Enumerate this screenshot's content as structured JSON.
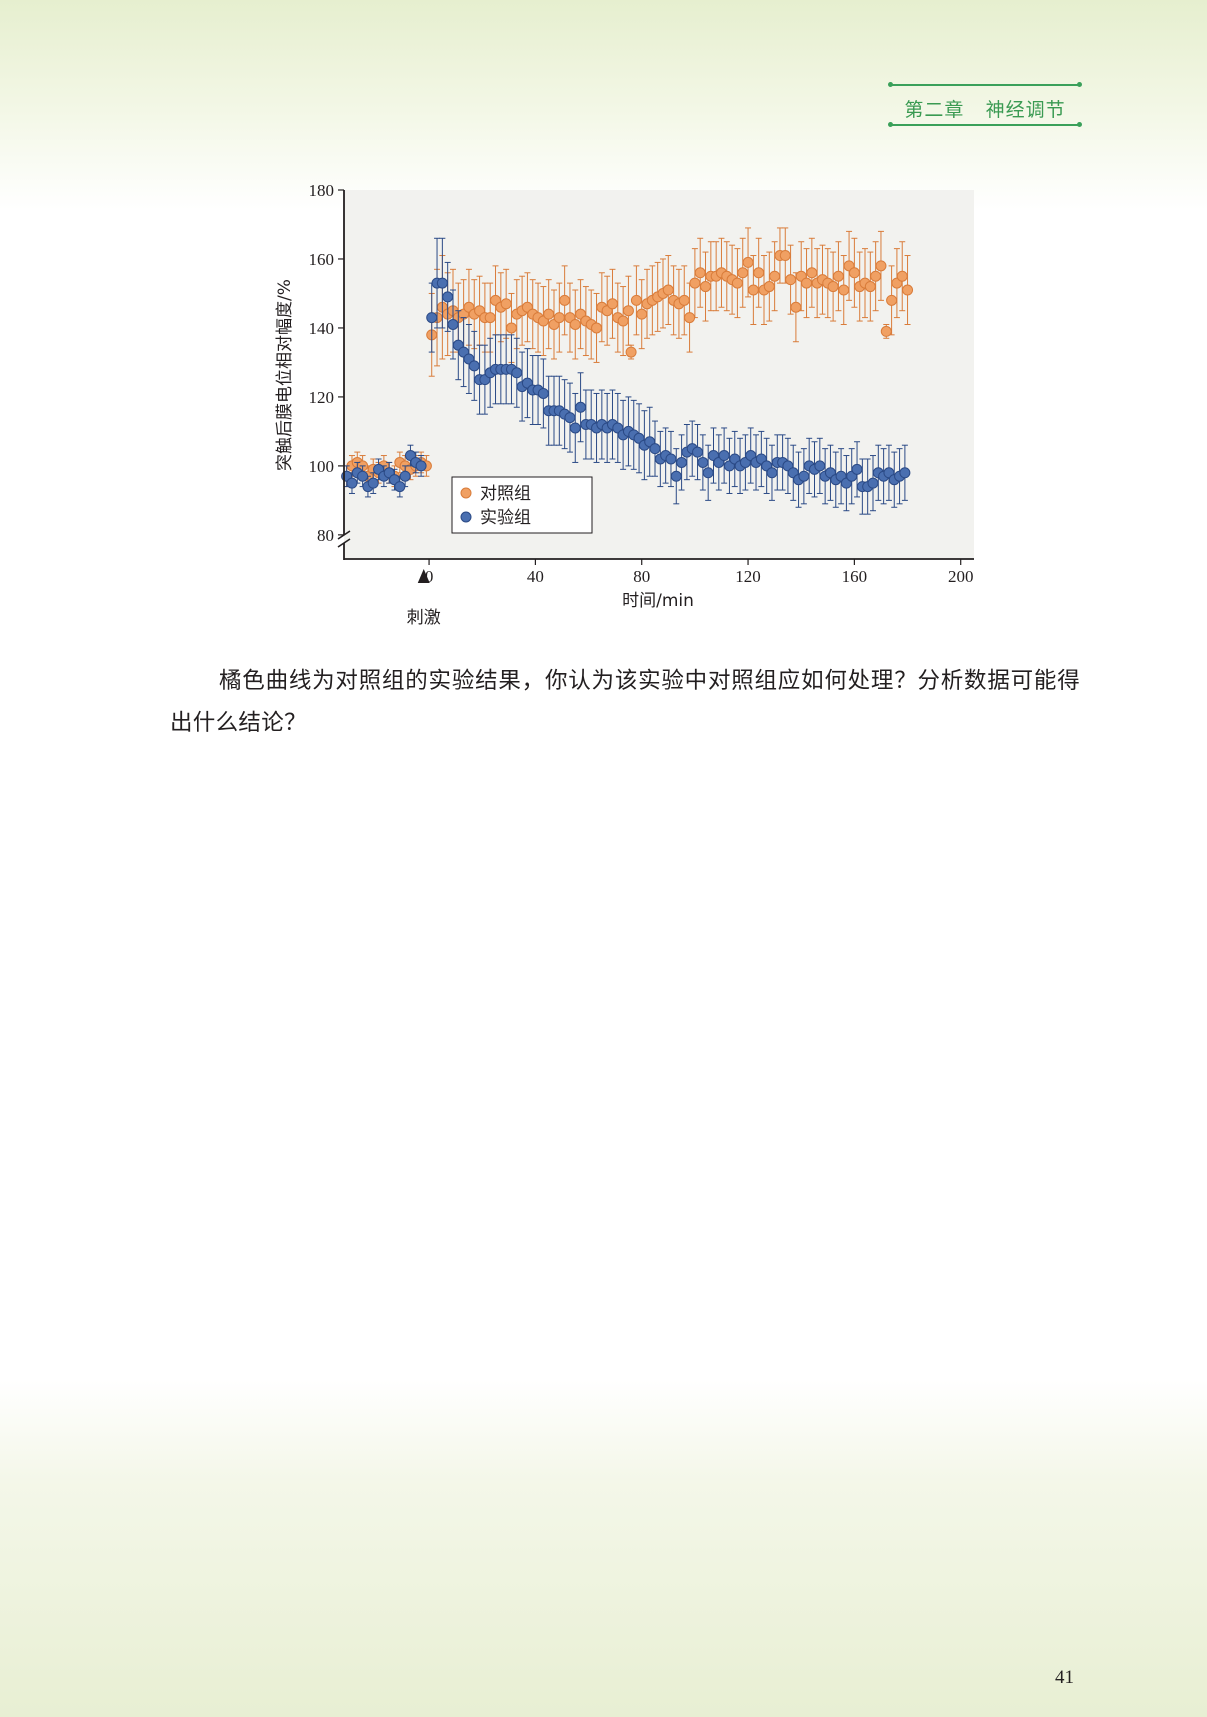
{
  "header": {
    "chapter": "第二章",
    "section": "神经调节"
  },
  "chart_data": {
    "type": "scatter",
    "xlabel": "时间/min",
    "ylabel": "突触后膜电位相对幅度/%",
    "xlim": [
      -32,
      205
    ],
    "ylim": [
      73,
      180
    ],
    "xticks": [
      "0",
      "40",
      "80",
      "120",
      "160",
      "200"
    ],
    "yticks": [
      "80",
      "100",
      "120",
      "140",
      "160",
      "180"
    ],
    "y_axis_break": true,
    "stimulus_label": "刺激",
    "stimulus_x": -2,
    "error_bars": true,
    "grid": false,
    "legend_position": "lower-left",
    "background_color": "#f2f2ef",
    "series": [
      {
        "name": "对照组",
        "color": "#f0a063",
        "edge_color": "#d97c3a",
        "points": [
          [
            -31,
            97,
            3
          ],
          [
            -29,
            100,
            3
          ],
          [
            -27,
            101,
            3
          ],
          [
            -25,
            100,
            3
          ],
          [
            -23,
            97,
            3
          ],
          [
            -21,
            99,
            3
          ],
          [
            -19,
            98,
            3
          ],
          [
            -17,
            100,
            3
          ],
          [
            -15,
            98,
            3
          ],
          [
            -13,
            97,
            3
          ],
          [
            -11,
            101,
            3
          ],
          [
            -9,
            100,
            3
          ],
          [
            -7,
            99,
            3
          ],
          [
            -5,
            100,
            3
          ],
          [
            -3,
            101,
            3
          ],
          [
            -1,
            100,
            3
          ],
          [
            1,
            138,
            12
          ],
          [
            3,
            143,
            14
          ],
          [
            5,
            146,
            15
          ],
          [
            7,
            144,
            12
          ],
          [
            9,
            145,
            12
          ],
          [
            11,
            143,
            10
          ],
          [
            13,
            144,
            10
          ],
          [
            15,
            146,
            11
          ],
          [
            17,
            144,
            10
          ],
          [
            19,
            145,
            10
          ],
          [
            21,
            143,
            10
          ],
          [
            23,
            143,
            10
          ],
          [
            25,
            148,
            10
          ],
          [
            27,
            146,
            10
          ],
          [
            29,
            147,
            10
          ],
          [
            31,
            140,
            10
          ],
          [
            33,
            144,
            10
          ],
          [
            35,
            145,
            10
          ],
          [
            37,
            146,
            10
          ],
          [
            39,
            144,
            10
          ],
          [
            41,
            143,
            10
          ],
          [
            43,
            142,
            10
          ],
          [
            45,
            144,
            10
          ],
          [
            47,
            141,
            10
          ],
          [
            49,
            143,
            10
          ],
          [
            51,
            148,
            10
          ],
          [
            53,
            143,
            10
          ],
          [
            55,
            141,
            10
          ],
          [
            57,
            144,
            10
          ],
          [
            59,
            142,
            10
          ],
          [
            61,
            141,
            10
          ],
          [
            63,
            140,
            10
          ],
          [
            65,
            146,
            10
          ],
          [
            67,
            145,
            10
          ],
          [
            69,
            147,
            10
          ],
          [
            71,
            143,
            10
          ],
          [
            73,
            142,
            10
          ],
          [
            75,
            145,
            10
          ],
          [
            76,
            133,
            2
          ],
          [
            78,
            148,
            10
          ],
          [
            80,
            144,
            10
          ],
          [
            82,
            147,
            10
          ],
          [
            84,
            148,
            10
          ],
          [
            86,
            149,
            10
          ],
          [
            88,
            150,
            10
          ],
          [
            90,
            151,
            10
          ],
          [
            92,
            148,
            10
          ],
          [
            94,
            147,
            10
          ],
          [
            96,
            148,
            10
          ],
          [
            98,
            143,
            10
          ],
          [
            100,
            153,
            10
          ],
          [
            102,
            156,
            10
          ],
          [
            104,
            152,
            10
          ],
          [
            106,
            155,
            10
          ],
          [
            108,
            155,
            10
          ],
          [
            110,
            156,
            10
          ],
          [
            112,
            155,
            10
          ],
          [
            114,
            154,
            10
          ],
          [
            116,
            153,
            10
          ],
          [
            118,
            156,
            10
          ],
          [
            120,
            159,
            10
          ],
          [
            122,
            151,
            10
          ],
          [
            124,
            156,
            10
          ],
          [
            126,
            151,
            10
          ],
          [
            128,
            152,
            10
          ],
          [
            130,
            155,
            10
          ],
          [
            132,
            161,
            8
          ],
          [
            134,
            161,
            8
          ],
          [
            136,
            154,
            10
          ],
          [
            138,
            146,
            10
          ],
          [
            140,
            155,
            10
          ],
          [
            142,
            153,
            10
          ],
          [
            144,
            156,
            10
          ],
          [
            146,
            153,
            10
          ],
          [
            148,
            154,
            10
          ],
          [
            150,
            153,
            10
          ],
          [
            152,
            152,
            10
          ],
          [
            154,
            155,
            10
          ],
          [
            156,
            151,
            10
          ],
          [
            158,
            158,
            10
          ],
          [
            160,
            156,
            10
          ],
          [
            162,
            152,
            10
          ],
          [
            164,
            153,
            10
          ],
          [
            166,
            152,
            10
          ],
          [
            168,
            155,
            10
          ],
          [
            170,
            158,
            10
          ],
          [
            172,
            139,
            2
          ],
          [
            174,
            148,
            10
          ],
          [
            176,
            153,
            10
          ],
          [
            178,
            155,
            10
          ],
          [
            180,
            151,
            10
          ]
        ]
      },
      {
        "name": "实验组",
        "color": "#4a6fb0",
        "edge_color": "#2b4a86",
        "points": [
          [
            -31,
            97,
            3
          ],
          [
            -29,
            95,
            3
          ],
          [
            -27,
            98,
            3
          ],
          [
            -25,
            97,
            3
          ],
          [
            -23,
            94,
            3
          ],
          [
            -21,
            95,
            3
          ],
          [
            -19,
            99,
            3
          ],
          [
            -17,
            97,
            3
          ],
          [
            -15,
            98,
            3
          ],
          [
            -13,
            96,
            3
          ],
          [
            -11,
            94,
            3
          ],
          [
            -9,
            97,
            3
          ],
          [
            -7,
            103,
            3
          ],
          [
            -5,
            101,
            3
          ],
          [
            -3,
            100,
            3
          ],
          [
            1,
            143,
            10
          ],
          [
            3,
            153,
            13
          ],
          [
            5,
            153,
            13
          ],
          [
            7,
            149,
            10
          ],
          [
            9,
            141,
            10
          ],
          [
            11,
            135,
            10
          ],
          [
            13,
            133,
            10
          ],
          [
            15,
            131,
            10
          ],
          [
            17,
            129,
            10
          ],
          [
            19,
            125,
            10
          ],
          [
            21,
            125,
            10
          ],
          [
            23,
            127,
            10
          ],
          [
            25,
            128,
            10
          ],
          [
            27,
            128,
            10
          ],
          [
            29,
            128,
            10
          ],
          [
            31,
            128,
            10
          ],
          [
            33,
            127,
            10
          ],
          [
            35,
            123,
            10
          ],
          [
            37,
            124,
            10
          ],
          [
            39,
            122,
            10
          ],
          [
            41,
            122,
            10
          ],
          [
            43,
            121,
            10
          ],
          [
            45,
            116,
            10
          ],
          [
            47,
            116,
            10
          ],
          [
            49,
            116,
            10
          ],
          [
            51,
            115,
            10
          ],
          [
            53,
            114,
            10
          ],
          [
            55,
            111,
            10
          ],
          [
            57,
            117,
            10
          ],
          [
            59,
            112,
            10
          ],
          [
            61,
            112,
            10
          ],
          [
            63,
            111,
            10
          ],
          [
            65,
            112,
            10
          ],
          [
            67,
            111,
            10
          ],
          [
            69,
            112,
            10
          ],
          [
            71,
            111,
            10
          ],
          [
            73,
            109,
            10
          ],
          [
            75,
            110,
            10
          ],
          [
            77,
            109,
            10
          ],
          [
            79,
            108,
            10
          ],
          [
            81,
            106,
            10
          ],
          [
            83,
            107,
            10
          ],
          [
            85,
            105,
            8
          ],
          [
            87,
            102,
            8
          ],
          [
            89,
            103,
            8
          ],
          [
            91,
            102,
            8
          ],
          [
            93,
            97,
            8
          ],
          [
            95,
            101,
            8
          ],
          [
            97,
            104,
            8
          ],
          [
            99,
            105,
            8
          ],
          [
            101,
            104,
            8
          ],
          [
            103,
            101,
            8
          ],
          [
            105,
            98,
            8
          ],
          [
            107,
            103,
            8
          ],
          [
            109,
            101,
            8
          ],
          [
            111,
            103,
            8
          ],
          [
            113,
            100,
            8
          ],
          [
            115,
            102,
            8
          ],
          [
            117,
            100,
            8
          ],
          [
            119,
            101,
            8
          ],
          [
            121,
            103,
            8
          ],
          [
            123,
            101,
            8
          ],
          [
            125,
            102,
            8
          ],
          [
            127,
            100,
            8
          ],
          [
            129,
            98,
            8
          ],
          [
            131,
            101,
            8
          ],
          [
            133,
            101,
            8
          ],
          [
            135,
            100,
            8
          ],
          [
            137,
            98,
            8
          ],
          [
            139,
            96,
            8
          ],
          [
            141,
            97,
            8
          ],
          [
            143,
            100,
            8
          ],
          [
            145,
            99,
            8
          ],
          [
            147,
            100,
            8
          ],
          [
            149,
            97,
            8
          ],
          [
            151,
            98,
            8
          ],
          [
            153,
            96,
            8
          ],
          [
            155,
            97,
            8
          ],
          [
            157,
            95,
            8
          ],
          [
            159,
            97,
            8
          ],
          [
            161,
            99,
            8
          ],
          [
            163,
            94,
            8
          ],
          [
            165,
            94,
            8
          ],
          [
            167,
            95,
            8
          ],
          [
            169,
            98,
            8
          ],
          [
            171,
            97,
            8
          ],
          [
            173,
            98,
            8
          ],
          [
            175,
            96,
            8
          ],
          [
            177,
            97,
            8
          ],
          [
            179,
            98,
            8
          ]
        ]
      }
    ]
  },
  "body": {
    "question": "橘色曲线为对照组的实验结果，你认为该实验中对照组应如何处理？分析数据可能得出什么结论？"
  },
  "page_number": "41"
}
